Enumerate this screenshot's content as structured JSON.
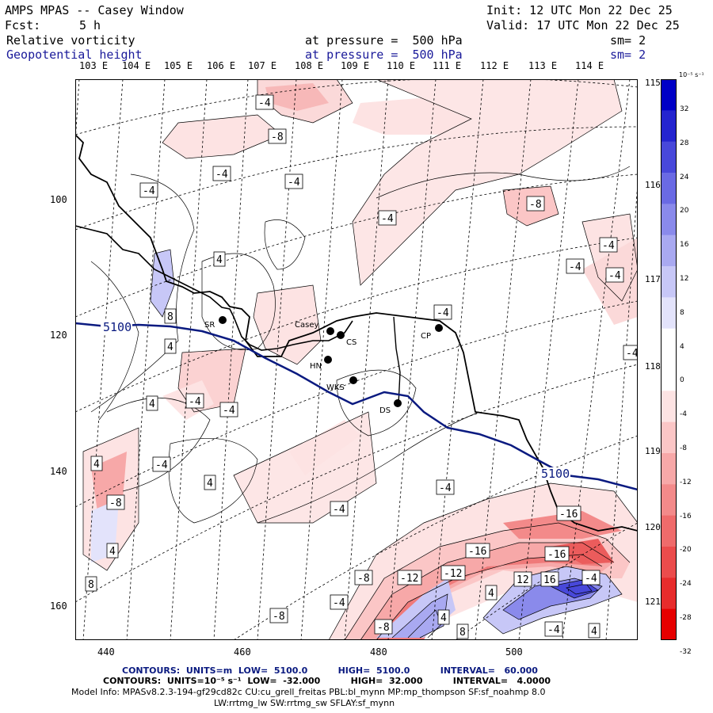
{
  "header": {
    "title": "AMPS MPAS -- Casey Window",
    "init": "Init: 12 UTC Mon 22 Dec 25",
    "fcst_label": "Fcst:",
    "fcst_value": "5 h",
    "valid": "Valid: 17 UTC Mon 22 Dec 25",
    "field1": "Relative vorticity",
    "field1_level": "at pressure =  500 hPa",
    "field1_sm": "sm= 2",
    "field2": "Geopotential height",
    "field2_level": "at pressure =  500 hPa",
    "field2_sm": "sm= 2"
  },
  "top_lon_labels": [
    "103 E",
    "104 E",
    "105 E",
    "106 E",
    "107 E",
    "108 E",
    "109 E",
    "110 E",
    "111 E",
    "112 E",
    "113 E",
    "114 E"
  ],
  "right_lon_labels": [
    "115 E",
    "116 E",
    "117 E",
    "118 E",
    "119 E",
    "120 E",
    "121 E"
  ],
  "y_axis_labels": [
    "100",
    "120",
    "140",
    "160"
  ],
  "x_axis_labels": [
    "440",
    "460",
    "480",
    "500"
  ],
  "colorbar": {
    "units": "10⁻⁵ s⁻¹",
    "ticks": [
      "32",
      "28",
      "24",
      "20",
      "16",
      "12",
      "8",
      "4",
      "0",
      "-4",
      "-8",
      "-12",
      "-16",
      "-20",
      "-24",
      "-28",
      "-32"
    ]
  },
  "stations": [
    {
      "code": "SR"
    },
    {
      "code": "Casey"
    },
    {
      "code": "CS"
    },
    {
      "code": "HN"
    },
    {
      "code": "WKS"
    },
    {
      "code": "DS"
    },
    {
      "code": "CP"
    }
  ],
  "contour_labels": [
    "-4",
    "-8",
    "-12",
    "-16",
    "4",
    "8",
    "12",
    "16",
    "5100"
  ],
  "colors": {
    "positive_ramp": [
      "#ffffff",
      "#e3e3fb",
      "#c7c7f7",
      "#a9a9f1",
      "#8a8aeb",
      "#6a6ae4",
      "#4848da",
      "#2424cf",
      "#0000c6"
    ],
    "negative_ramp": [
      "#ffffff",
      "#fde3e3",
      "#fbc6c6",
      "#f7a8a8",
      "#f38a8a",
      "#ef6b6b",
      "#eb4c4c",
      "#e72c2c",
      "#e60000"
    ],
    "height_contour": "#0a1a80"
  },
  "footer": {
    "line1": "CONTOURS:  UNITS=m  LOW=  5100.0          HIGH=  5100.0          INTERVAL=   60.000",
    "line2": "CONTOURS:  UNITS=10⁻⁵ s⁻¹  LOW=  -32.000          HIGH=  32.000          INTERVAL=   4.0000",
    "line3": "Model Info: MPASv8.2.3-194-gf29cd82c CU:cu_grell_freitas PBL:bl_mynn MP:mp_thompson SF:sf_noahmp 8.0",
    "line4": "LW:rrtmg_lw SW:rrtmg_sw SFLAY:sf_mynn"
  }
}
